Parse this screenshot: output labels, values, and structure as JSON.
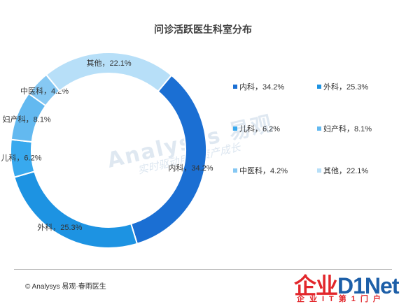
{
  "chart_data": {
    "type": "pie",
    "title": "问诊活跃医生科室分布",
    "slices": [
      {
        "name": "内科",
        "value": 34.2,
        "label": "内科，34.2%",
        "color": "#1b6fd3"
      },
      {
        "name": "外科",
        "value": 25.3,
        "label": "外科，25.3%",
        "color": "#1d93e2"
      },
      {
        "name": "儿科",
        "value": 6.2,
        "label": "儿科，6.2%",
        "color": "#38a9ee"
      },
      {
        "name": "妇产科",
        "value": 8.1,
        "label": "妇产科，8.1%",
        "color": "#63b9f0"
      },
      {
        "name": "中医科",
        "value": 4.2,
        "label": "中医科，4.2%",
        "color": "#86c8f3"
      },
      {
        "name": "其他",
        "value": 22.1,
        "label": "其他，22.1%",
        "color": "#b7dff8"
      }
    ],
    "legend_position": "right"
  },
  "watermark": {
    "logo_text": "Analysys 易观",
    "slogan": "实时驱动用户资产成长"
  },
  "footer": {
    "source": "© Analysys 易观·春雨医生",
    "brand_main": "企业",
    "brand_accent": "D1Net",
    "brand_sub": "企业IT第1门户"
  }
}
